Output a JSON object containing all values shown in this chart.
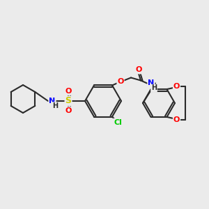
{
  "smiles": "O=C(COc1cc(S(=O)(=O)NC2CCCCC2)ccc1Cl)Nc1ccc2c(c1)OCCO2",
  "bg_color": "#ebebeb",
  "bond_color": "#2a2a2a",
  "colors": {
    "O": "#ff0000",
    "N": "#0000ff",
    "S": "#cccc00",
    "Cl": "#00cc00",
    "C": "#2a2a2a",
    "H": "#2a2a2a"
  }
}
